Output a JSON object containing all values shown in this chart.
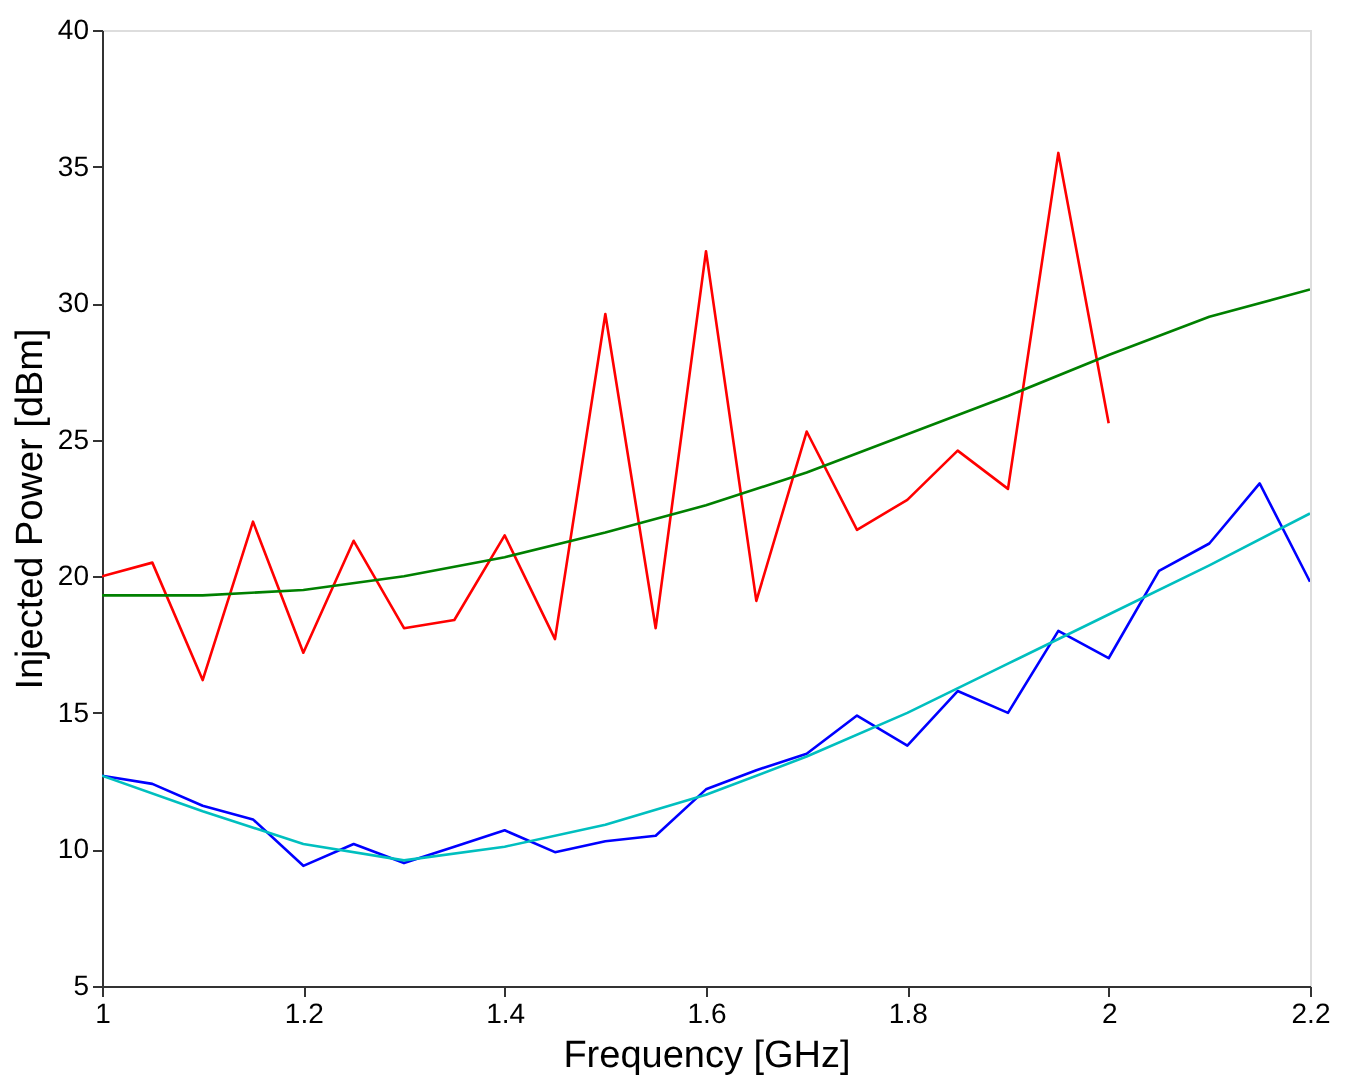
{
  "chart_data": {
    "type": "line",
    "xlabel": "Frequency [GHz]",
    "ylabel": "Injected Power [dBm]",
    "xlim": [
      1,
      2.2
    ],
    "xticks": [
      1,
      1.2,
      1.4,
      1.6,
      1.8,
      2,
      2.2
    ],
    "ylim": [
      5,
      40
    ],
    "yticks": [
      5,
      10,
      15,
      20,
      25,
      30,
      35,
      40
    ],
    "grid": false,
    "marker": "none",
    "line_style": "solid",
    "series": [
      {
        "color": "#ff0000",
        "x": [
          1.0,
          1.05,
          1.1,
          1.15,
          1.2,
          1.25,
          1.3,
          1.35,
          1.4,
          1.45,
          1.5,
          1.55,
          1.6,
          1.65,
          1.7,
          1.75,
          1.8,
          1.85,
          1.9,
          1.95,
          2.0
        ],
        "values": [
          20.0,
          20.5,
          16.2,
          22.0,
          17.2,
          21.3,
          18.1,
          18.4,
          21.5,
          17.7,
          29.6,
          18.1,
          31.9,
          19.1,
          25.3,
          21.7,
          22.8,
          24.6,
          23.2,
          35.5,
          25.6
        ]
      },
      {
        "color": "#008000",
        "x": [
          1.0,
          1.1,
          1.2,
          1.3,
          1.4,
          1.5,
          1.6,
          1.7,
          1.8,
          1.9,
          2.0,
          2.1,
          2.2
        ],
        "values": [
          19.3,
          19.3,
          19.5,
          20.0,
          20.7,
          21.6,
          22.6,
          23.8,
          25.2,
          26.6,
          28.1,
          29.5,
          30.5
        ]
      },
      {
        "color": "#0000ff",
        "x": [
          1.0,
          1.05,
          1.1,
          1.15,
          1.2,
          1.25,
          1.3,
          1.35,
          1.4,
          1.45,
          1.5,
          1.55,
          1.6,
          1.65,
          1.7,
          1.75,
          1.8,
          1.85,
          1.9,
          1.95,
          2.0,
          2.05,
          2.1,
          2.15,
          2.2
        ],
        "values": [
          12.7,
          12.4,
          11.6,
          11.1,
          9.4,
          10.2,
          9.5,
          10.1,
          10.7,
          9.9,
          10.3,
          10.5,
          12.2,
          12.9,
          13.5,
          14.9,
          13.8,
          15.8,
          15.0,
          18.0,
          17.0,
          20.2,
          21.2,
          23.4,
          19.8
        ]
      },
      {
        "color": "#00bfbf",
        "x": [
          1.0,
          1.1,
          1.2,
          1.3,
          1.4,
          1.5,
          1.6,
          1.7,
          1.8,
          1.9,
          2.0,
          2.1,
          2.2
        ],
        "values": [
          12.7,
          11.4,
          10.2,
          9.6,
          10.1,
          10.9,
          12.0,
          13.4,
          15.0,
          16.8,
          18.6,
          20.4,
          22.3
        ]
      }
    ]
  }
}
